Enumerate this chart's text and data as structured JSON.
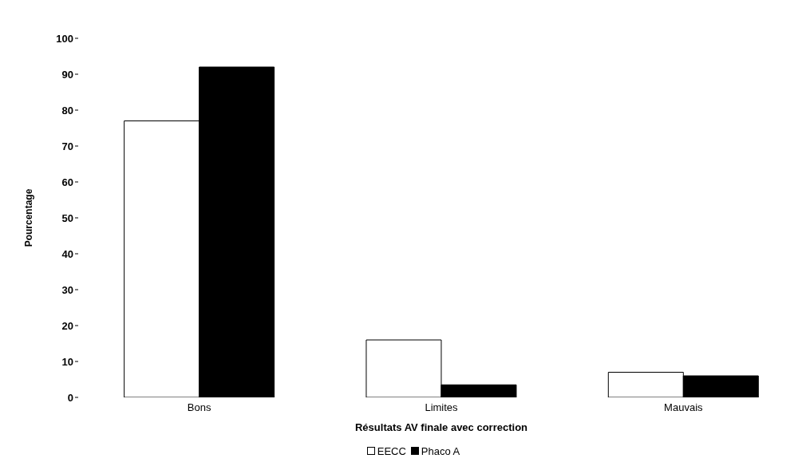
{
  "chart_data": {
    "type": "bar",
    "xlabel": "Résultats AV finale avec correction",
    "ylabel": "Pourcentage",
    "categories": [
      "Bons",
      "Limites",
      "Mauvais"
    ],
    "series": [
      {
        "name": "EECC",
        "color": "#ffffff",
        "values": [
          77,
          16,
          7
        ]
      },
      {
        "name": "Phaco A",
        "color": "#000000",
        "values": [
          92,
          3.5,
          6
        ]
      }
    ],
    "ylim": [
      0,
      100
    ],
    "yticks": [
      0,
      10,
      20,
      30,
      40,
      50,
      60,
      70,
      80,
      90,
      100
    ],
    "grid": false,
    "legend": "bottom"
  }
}
